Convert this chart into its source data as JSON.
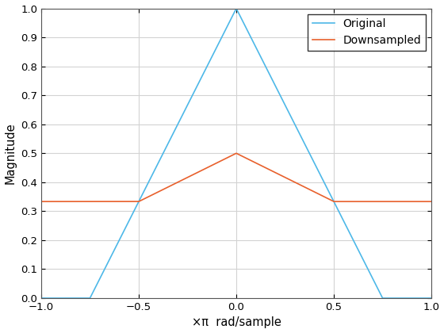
{
  "title": "",
  "xlabel": "×π  rad/sample",
  "ylabel": "Magnitude",
  "xlim": [
    -1,
    1
  ],
  "ylim": [
    0,
    1
  ],
  "yticks": [
    0,
    0.1,
    0.2,
    0.3,
    0.4,
    0.5,
    0.6,
    0.7,
    0.8,
    0.9,
    1.0
  ],
  "xticks": [
    -1,
    -0.5,
    0,
    0.5,
    1
  ],
  "original_color": "#4db8e8",
  "downsampled_color": "#e8602c",
  "background_color": "#ffffff",
  "grid_color": "#d3d3d3",
  "legend_labels": [
    "Original",
    "Downsampled"
  ],
  "figsize": [
    5.6,
    4.2
  ],
  "dpi": 100,
  "original_cutoff": 0.75,
  "downsample_factor": 2
}
